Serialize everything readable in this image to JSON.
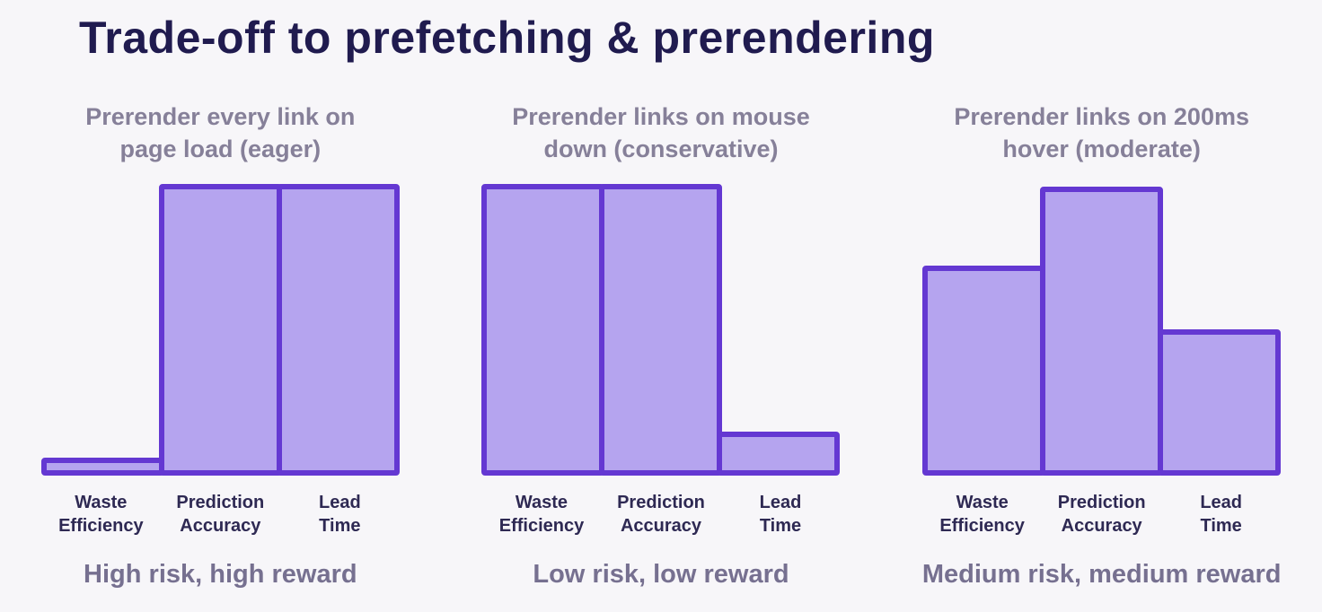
{
  "page": {
    "title": "Trade-off to prefetching & prerendering",
    "background": "#f7f6f9",
    "title_color": "#201b4f"
  },
  "colors": {
    "bar_fill": "#b5a4ef",
    "bar_border": "#6438d2",
    "subtitle_text": "#868099",
    "caption_text": "#767090",
    "category_label_text": "#2e2953"
  },
  "chart_data": [
    {
      "type": "bar",
      "title": "Prerender every link on page load (eager)",
      "title_lines": [
        "Prerender every link on",
        "page load (eager)"
      ],
      "categories": [
        "Waste Efficiency",
        "Prediction Accuracy",
        "Lead Time"
      ],
      "category_lines": [
        [
          "Waste",
          "Efficiency"
        ],
        [
          "Prediction",
          "Accuracy"
        ],
        [
          "Lead",
          "Time"
        ]
      ],
      "values": [
        6,
        100,
        100
      ],
      "ylim": [
        0,
        100
      ],
      "grid": false,
      "caption": "High risk, high reward"
    },
    {
      "type": "bar",
      "title": "Prerender links on mouse down (conservative)",
      "title_lines": [
        "Prerender links on mouse",
        "down (conservative)"
      ],
      "categories": [
        "Waste Efficiency",
        "Prediction Accuracy",
        "Lead Time"
      ],
      "category_lines": [
        [
          "Waste",
          "Efficiency"
        ],
        [
          "Prediction",
          "Accuracy"
        ],
        [
          "Lead",
          "Time"
        ]
      ],
      "values": [
        100,
        100,
        15
      ],
      "ylim": [
        0,
        100
      ],
      "grid": false,
      "caption": "Low risk, low reward"
    },
    {
      "type": "bar",
      "title": "Prerender links on 200ms hover (moderate)",
      "title_lines": [
        "Prerender links on 200ms",
        "hover (moderate)"
      ],
      "categories": [
        "Waste Efficiency",
        "Prediction Accuracy",
        "Lead Time"
      ],
      "category_lines": [
        [
          "Waste",
          "Efficiency"
        ],
        [
          "Prediction",
          "Accuracy"
        ],
        [
          "Lead",
          "Time"
        ]
      ],
      "values": [
        72,
        99,
        50
      ],
      "ylim": [
        0,
        100
      ],
      "grid": false,
      "caption": "Medium risk, medium reward"
    }
  ]
}
